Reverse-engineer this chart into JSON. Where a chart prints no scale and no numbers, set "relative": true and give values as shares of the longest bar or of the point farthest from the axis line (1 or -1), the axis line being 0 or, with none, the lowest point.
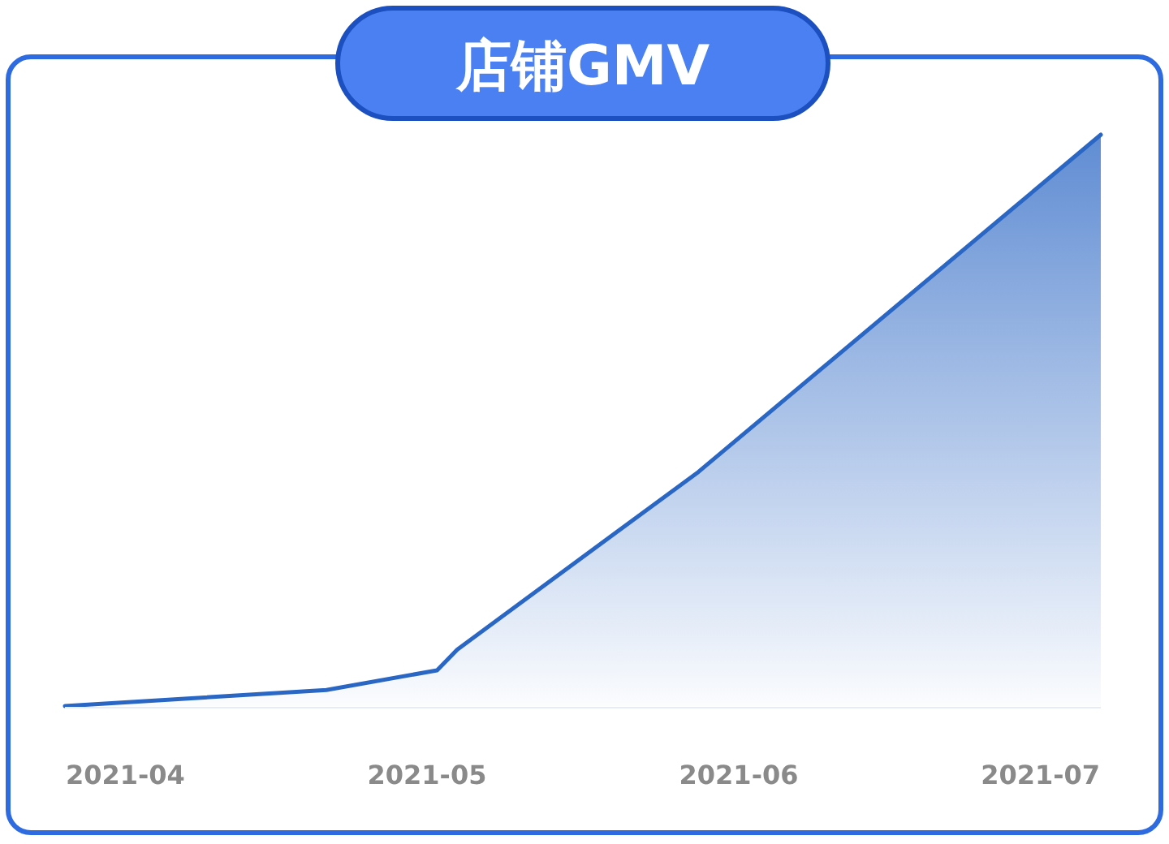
{
  "chart_data": {
    "type": "area",
    "title": "店铺GMV",
    "relative": true,
    "color": "#2a66c4",
    "x": [
      "2021-03-26",
      "2021-04-21",
      "2021-05-02",
      "2021-05-04",
      "2021-05-28",
      "2021-07-07"
    ],
    "values": [
      0,
      0.028,
      0.0625,
      0.099,
      0.41,
      1
    ],
    "xlim": [
      "2021-03-26",
      "2021-07-07"
    ],
    "xticks": [
      {
        "value": "2021-04-01",
        "label": "2021-04"
      },
      {
        "value": "2021-05-01",
        "label": "2021-05"
      },
      {
        "value": "2021-06-01",
        "label": "2021-06"
      },
      {
        "value": "2021-07-01",
        "label": "2021-07"
      }
    ]
  }
}
